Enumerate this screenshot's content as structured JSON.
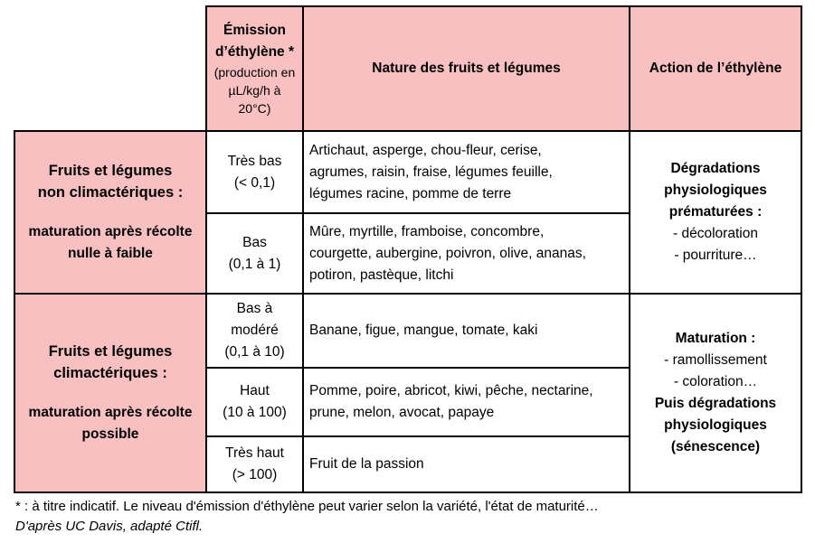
{
  "header": {
    "emission_title": "Émission d’éthylène *",
    "emission_sub": [
      "(production en",
      "µL/kg/h à",
      "20°C)"
    ],
    "nature": "Nature des fruits et légumes",
    "action": "Action de l’éthylène"
  },
  "groups": [
    {
      "title": [
        "Fruits et légumes",
        "non climactériques :"
      ],
      "sub": [
        "maturation après récolte",
        "nulle à faible"
      ]
    },
    {
      "title": [
        "Fruits et légumes",
        "climactériques :"
      ],
      "sub": [
        "maturation après récolte",
        "possible"
      ]
    }
  ],
  "rows": [
    {
      "level": [
        "Très bas",
        "(< 0,1)"
      ],
      "nature": [
        "Artichaut, asperge, chou-fleur, cerise,",
        "agrumes, raisin, fraise, légumes feuille,",
        "légumes racine, pomme de terre"
      ]
    },
    {
      "level": [
        "Bas",
        "(0,1 à 1)"
      ],
      "nature": [
        "Mûre, myrtille, framboise, concombre,",
        "courgette, aubergine, poivron, olive, ananas,",
        "potiron, pastèque, litchi"
      ]
    },
    {
      "level": [
        "Bas à",
        "modéré",
        "(0,1 à 10)"
      ],
      "nature": [
        "Banane, figue, mangue, tomate, kaki"
      ]
    },
    {
      "level": [
        "Haut",
        "(10 à 100)"
      ],
      "nature": [
        "Pomme, poire, abricot, kiwi, pêche, nectarine,",
        "prune, melon, avocat, papaye"
      ]
    },
    {
      "level": [
        "Très haut",
        "(> 100)"
      ],
      "nature": [
        "Fruit de la passion"
      ]
    }
  ],
  "actions": [
    {
      "bold": [
        "Dégradations",
        "physiologiques",
        "prématurées :"
      ],
      "plain": [
        "- décoloration",
        "- pourriture…"
      ]
    },
    {
      "bold_top": [
        "Maturation :"
      ],
      "plain": [
        "- ramollissement",
        "- coloration…"
      ],
      "bold_bottom": [
        "Puis dégradations",
        "physiologiques",
        "(sénescence)"
      ]
    }
  ],
  "footnote": "* : à titre indicatif. Le niveau d'émission d'éthylène peut varier selon la variété, l'état de maturité…",
  "source": "D'après UC Davis, adapté Ctifl.",
  "colors": {
    "header_pink": "#f8c0c0",
    "border": "#000000"
  }
}
